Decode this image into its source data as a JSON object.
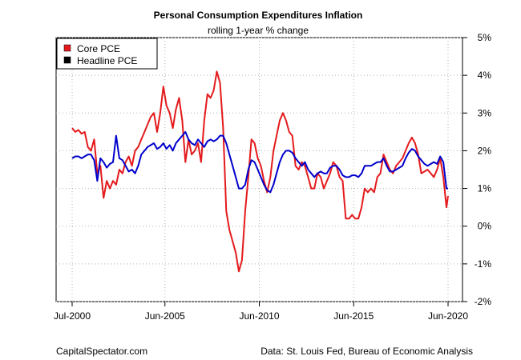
{
  "chart_data": {
    "type": "line",
    "title": "Personal Consumption Expenditures Inflation",
    "subtitle": "rolling 1-year % change",
    "xlabel": "",
    "ylabel": "",
    "x_ticks": [
      "Jul-2000",
      "Jun-2005",
      "Jun-2010",
      "Jun-2015",
      "Jun-2020"
    ],
    "y_ticks": [
      "5%",
      "4%",
      "3%",
      "2%",
      "1%",
      "0%",
      "-1%",
      "-2%"
    ],
    "ylim": [
      -2,
      5
    ],
    "xlim": [
      "2000-07",
      "2020-06"
    ],
    "grid": true,
    "legend_position": "top-left",
    "series": [
      {
        "name": "Core PCE",
        "color": "#e41a1c",
        "points": [
          [
            "2000-07",
            2.6
          ],
          [
            "2000-09",
            2.5
          ],
          [
            "2000-11",
            2.55
          ],
          [
            "2001-01",
            2.45
          ],
          [
            "2001-03",
            2.5
          ],
          [
            "2001-05",
            2.1
          ],
          [
            "2001-07",
            2.0
          ],
          [
            "2001-09",
            2.3
          ],
          [
            "2001-11",
            1.4
          ],
          [
            "2002-01",
            1.6
          ],
          [
            "2002-03",
            0.75
          ],
          [
            "2002-05",
            1.2
          ],
          [
            "2002-07",
            1.0
          ],
          [
            "2002-09",
            1.2
          ],
          [
            "2002-11",
            1.1
          ],
          [
            "2003-01",
            1.5
          ],
          [
            "2003-03",
            1.4
          ],
          [
            "2003-05",
            1.7
          ],
          [
            "2003-07",
            1.85
          ],
          [
            "2003-09",
            1.6
          ],
          [
            "2003-11",
            2.0
          ],
          [
            "2004-01",
            2.1
          ],
          [
            "2004-03",
            2.3
          ],
          [
            "2004-05",
            2.5
          ],
          [
            "2004-07",
            2.7
          ],
          [
            "2004-09",
            2.9
          ],
          [
            "2004-11",
            3.0
          ],
          [
            "2005-01",
            2.5
          ],
          [
            "2005-03",
            3.0
          ],
          [
            "2005-05",
            3.7
          ],
          [
            "2005-07",
            3.2
          ],
          [
            "2005-09",
            3.0
          ],
          [
            "2005-11",
            2.6
          ],
          [
            "2006-01",
            3.1
          ],
          [
            "2006-03",
            3.4
          ],
          [
            "2006-05",
            2.8
          ],
          [
            "2006-07",
            1.7
          ],
          [
            "2006-09",
            2.3
          ],
          [
            "2006-11",
            1.9
          ],
          [
            "2007-01",
            2.0
          ],
          [
            "2007-03",
            2.2
          ],
          [
            "2007-05",
            1.7
          ],
          [
            "2007-07",
            2.8
          ],
          [
            "2007-09",
            3.5
          ],
          [
            "2007-11",
            3.4
          ],
          [
            "2008-01",
            3.6
          ],
          [
            "2008-03",
            4.1
          ],
          [
            "2008-05",
            3.8
          ],
          [
            "2008-07",
            2.6
          ],
          [
            "2008-09",
            0.4
          ],
          [
            "2008-11",
            -0.1
          ],
          [
            "2009-01",
            -0.4
          ],
          [
            "2009-03",
            -0.7
          ],
          [
            "2009-05",
            -1.2
          ],
          [
            "2009-07",
            -0.9
          ],
          [
            "2009-09",
            0.4
          ],
          [
            "2009-11",
            1.3
          ],
          [
            "2010-01",
            2.3
          ],
          [
            "2010-03",
            2.2
          ],
          [
            "2010-05",
            1.8
          ],
          [
            "2010-07",
            1.6
          ],
          [
            "2010-09",
            1.2
          ],
          [
            "2010-11",
            0.9
          ],
          [
            "2011-01",
            1.3
          ],
          [
            "2011-03",
            2.0
          ],
          [
            "2011-05",
            2.4
          ],
          [
            "2011-07",
            2.8
          ],
          [
            "2011-09",
            3.0
          ],
          [
            "2011-11",
            2.8
          ],
          [
            "2012-01",
            2.5
          ],
          [
            "2012-03",
            2.4
          ],
          [
            "2012-05",
            1.6
          ],
          [
            "2012-07",
            1.5
          ],
          [
            "2012-09",
            1.7
          ],
          [
            "2012-11",
            1.6
          ],
          [
            "2013-01",
            1.3
          ],
          [
            "2013-03",
            1.0
          ],
          [
            "2013-05",
            1.0
          ],
          [
            "2013-07",
            1.4
          ],
          [
            "2013-09",
            1.3
          ],
          [
            "2013-11",
            1.0
          ],
          [
            "2014-01",
            1.2
          ],
          [
            "2014-03",
            1.4
          ],
          [
            "2014-05",
            1.7
          ],
          [
            "2014-07",
            1.6
          ],
          [
            "2014-09",
            1.3
          ],
          [
            "2014-11",
            1.2
          ],
          [
            "2015-01",
            0.2
          ],
          [
            "2015-03",
            0.2
          ],
          [
            "2015-05",
            0.3
          ],
          [
            "2015-07",
            0.2
          ],
          [
            "2015-09",
            0.2
          ],
          [
            "2015-11",
            0.5
          ],
          [
            "2016-01",
            1.0
          ],
          [
            "2016-03",
            0.9
          ],
          [
            "2016-05",
            1.0
          ],
          [
            "2016-07",
            0.9
          ],
          [
            "2016-09",
            1.3
          ],
          [
            "2016-11",
            1.4
          ],
          [
            "2017-01",
            1.9
          ],
          [
            "2017-03",
            1.7
          ],
          [
            "2017-05",
            1.5
          ],
          [
            "2017-07",
            1.4
          ],
          [
            "2017-09",
            1.6
          ],
          [
            "2017-11",
            1.7
          ],
          [
            "2018-01",
            1.8
          ],
          [
            "2018-03",
            2.0
          ],
          [
            "2018-05",
            2.2
          ],
          [
            "2018-07",
            2.35
          ],
          [
            "2018-09",
            2.2
          ],
          [
            "2018-11",
            1.9
          ],
          [
            "2019-01",
            1.4
          ],
          [
            "2019-03",
            1.45
          ],
          [
            "2019-05",
            1.5
          ],
          [
            "2019-07",
            1.4
          ],
          [
            "2019-09",
            1.3
          ],
          [
            "2019-11",
            1.5
          ],
          [
            "2020-01",
            1.8
          ],
          [
            "2020-03",
            1.3
          ],
          [
            "2020-05",
            0.5
          ],
          [
            "2020-06",
            0.8
          ]
        ]
      },
      {
        "name": "Headline PCE",
        "color": "#0000cc",
        "points": [
          [
            "2000-07",
            1.8
          ],
          [
            "2000-09",
            1.85
          ],
          [
            "2000-11",
            1.85
          ],
          [
            "2001-01",
            1.8
          ],
          [
            "2001-03",
            1.85
          ],
          [
            "2001-05",
            1.9
          ],
          [
            "2001-07",
            1.9
          ],
          [
            "2001-09",
            1.75
          ],
          [
            "2001-11",
            1.2
          ],
          [
            "2002-01",
            1.8
          ],
          [
            "2002-03",
            1.7
          ],
          [
            "2002-05",
            1.55
          ],
          [
            "2002-07",
            1.65
          ],
          [
            "2002-09",
            1.7
          ],
          [
            "2002-11",
            2.4
          ],
          [
            "2003-01",
            1.8
          ],
          [
            "2003-03",
            1.75
          ],
          [
            "2003-05",
            1.6
          ],
          [
            "2003-07",
            1.45
          ],
          [
            "2003-09",
            1.5
          ],
          [
            "2003-11",
            1.4
          ],
          [
            "2004-01",
            1.6
          ],
          [
            "2004-03",
            1.9
          ],
          [
            "2004-05",
            2.0
          ],
          [
            "2004-07",
            2.1
          ],
          [
            "2004-09",
            2.15
          ],
          [
            "2004-11",
            2.2
          ],
          [
            "2005-01",
            2.05
          ],
          [
            "2005-03",
            2.1
          ],
          [
            "2005-05",
            2.2
          ],
          [
            "2005-07",
            2.05
          ],
          [
            "2005-09",
            2.15
          ],
          [
            "2005-11",
            2.0
          ],
          [
            "2006-01",
            2.2
          ],
          [
            "2006-03",
            2.3
          ],
          [
            "2006-05",
            2.4
          ],
          [
            "2006-07",
            2.5
          ],
          [
            "2006-09",
            2.3
          ],
          [
            "2006-11",
            2.2
          ],
          [
            "2007-01",
            2.15
          ],
          [
            "2007-03",
            2.3
          ],
          [
            "2007-05",
            2.2
          ],
          [
            "2007-07",
            2.1
          ],
          [
            "2007-09",
            2.25
          ],
          [
            "2007-11",
            2.3
          ],
          [
            "2008-01",
            2.25
          ],
          [
            "2008-03",
            2.3
          ],
          [
            "2008-05",
            2.4
          ],
          [
            "2008-07",
            2.4
          ],
          [
            "2008-09",
            2.2
          ],
          [
            "2008-11",
            1.9
          ],
          [
            "2009-01",
            1.6
          ],
          [
            "2009-03",
            1.3
          ],
          [
            "2009-05",
            1.0
          ],
          [
            "2009-07",
            1.0
          ],
          [
            "2009-09",
            1.1
          ],
          [
            "2009-11",
            1.5
          ],
          [
            "2010-01",
            1.75
          ],
          [
            "2010-03",
            1.7
          ],
          [
            "2010-05",
            1.5
          ],
          [
            "2010-07",
            1.3
          ],
          [
            "2010-09",
            1.1
          ],
          [
            "2010-11",
            0.95
          ],
          [
            "2011-01",
            0.9
          ],
          [
            "2011-03",
            1.1
          ],
          [
            "2011-05",
            1.4
          ],
          [
            "2011-07",
            1.7
          ],
          [
            "2011-09",
            1.9
          ],
          [
            "2011-11",
            2.0
          ],
          [
            "2012-01",
            2.0
          ],
          [
            "2012-03",
            1.95
          ],
          [
            "2012-05",
            1.8
          ],
          [
            "2012-07",
            1.7
          ],
          [
            "2012-09",
            1.6
          ],
          [
            "2012-11",
            1.7
          ],
          [
            "2013-01",
            1.5
          ],
          [
            "2013-03",
            1.4
          ],
          [
            "2013-05",
            1.3
          ],
          [
            "2013-07",
            1.4
          ],
          [
            "2013-09",
            1.45
          ],
          [
            "2013-11",
            1.4
          ],
          [
            "2014-01",
            1.4
          ],
          [
            "2014-03",
            1.55
          ],
          [
            "2014-05",
            1.6
          ],
          [
            "2014-07",
            1.6
          ],
          [
            "2014-09",
            1.5
          ],
          [
            "2014-11",
            1.35
          ],
          [
            "2015-01",
            1.3
          ],
          [
            "2015-03",
            1.3
          ],
          [
            "2015-05",
            1.35
          ],
          [
            "2015-07",
            1.35
          ],
          [
            "2015-09",
            1.3
          ],
          [
            "2015-11",
            1.4
          ],
          [
            "2016-01",
            1.6
          ],
          [
            "2016-03",
            1.6
          ],
          [
            "2016-05",
            1.6
          ],
          [
            "2016-07",
            1.65
          ],
          [
            "2016-09",
            1.7
          ],
          [
            "2016-11",
            1.7
          ],
          [
            "2017-01",
            1.8
          ],
          [
            "2017-03",
            1.6
          ],
          [
            "2017-05",
            1.45
          ],
          [
            "2017-07",
            1.45
          ],
          [
            "2017-09",
            1.5
          ],
          [
            "2017-11",
            1.55
          ],
          [
            "2018-01",
            1.6
          ],
          [
            "2018-03",
            1.8
          ],
          [
            "2018-05",
            1.95
          ],
          [
            "2018-07",
            2.05
          ],
          [
            "2018-09",
            2.0
          ],
          [
            "2018-11",
            1.85
          ],
          [
            "2019-01",
            1.75
          ],
          [
            "2019-03",
            1.65
          ],
          [
            "2019-05",
            1.6
          ],
          [
            "2019-07",
            1.65
          ],
          [
            "2019-09",
            1.7
          ],
          [
            "2019-11",
            1.65
          ],
          [
            "2020-01",
            1.85
          ],
          [
            "2020-03",
            1.7
          ],
          [
            "2020-05",
            1.0
          ],
          [
            "2020-06",
            1.0
          ]
        ]
      }
    ]
  },
  "footer": {
    "left": "CapitalSpectator.com",
    "right": "Data: St. Louis Fed, Bureau of Economic Analysis"
  }
}
